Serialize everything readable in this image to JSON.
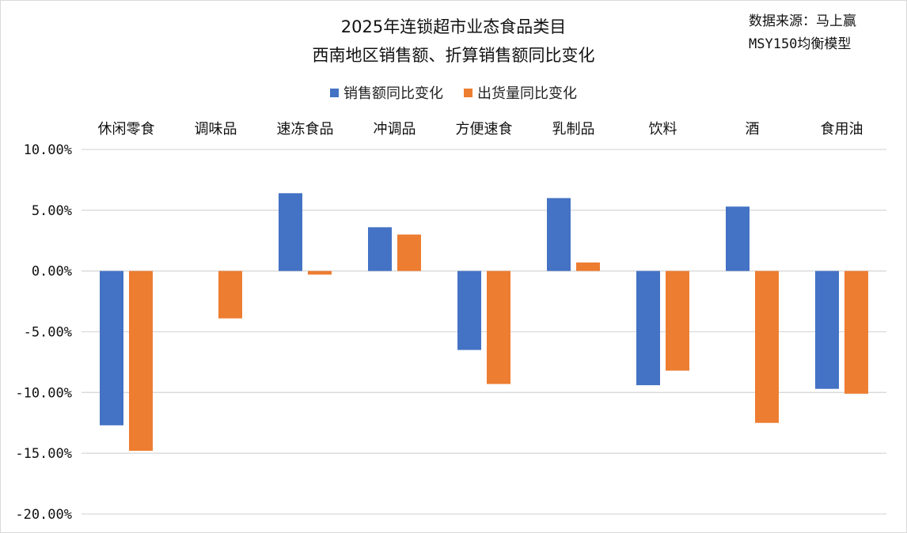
{
  "title_line1": "2025年连锁超市业态食品类目",
  "title_line2": "西南地区销售额、折算销售额同比变化",
  "source_line1": "数据来源：马上赢",
  "source_line2": "MSY150均衡模型",
  "colors": {
    "series_1": "#4472c4",
    "series_2": "#ed7d31",
    "grid": "#d9d9d9"
  },
  "chart_data": {
    "type": "bar",
    "categories": [
      "休闲零食",
      "调味品",
      "速冻食品",
      "冲调品",
      "方便速食",
      "乳制品",
      "饮料",
      "酒",
      "食用油"
    ],
    "series": [
      {
        "name": "销售额同比变化",
        "values": [
          -12.7,
          null,
          6.4,
          3.6,
          -6.5,
          6.0,
          -9.4,
          5.3,
          -9.7
        ]
      },
      {
        "name": "出货量同比变化",
        "values": [
          -14.8,
          -3.9,
          -0.3,
          3.0,
          -9.3,
          0.7,
          -8.2,
          -12.5,
          -10.1
        ]
      }
    ],
    "ylim": [
      -20,
      10
    ],
    "yticks": [
      "10.00%",
      "5.00%",
      "0.00%",
      "-5.00%",
      "-10.00%",
      "-15.00%",
      "-20.00%"
    ],
    "ytick_values": [
      10,
      5,
      0,
      -5,
      -10,
      -15,
      -20
    ],
    "grid": true,
    "legend_position": "top-center",
    "category_labels_position": "top"
  }
}
